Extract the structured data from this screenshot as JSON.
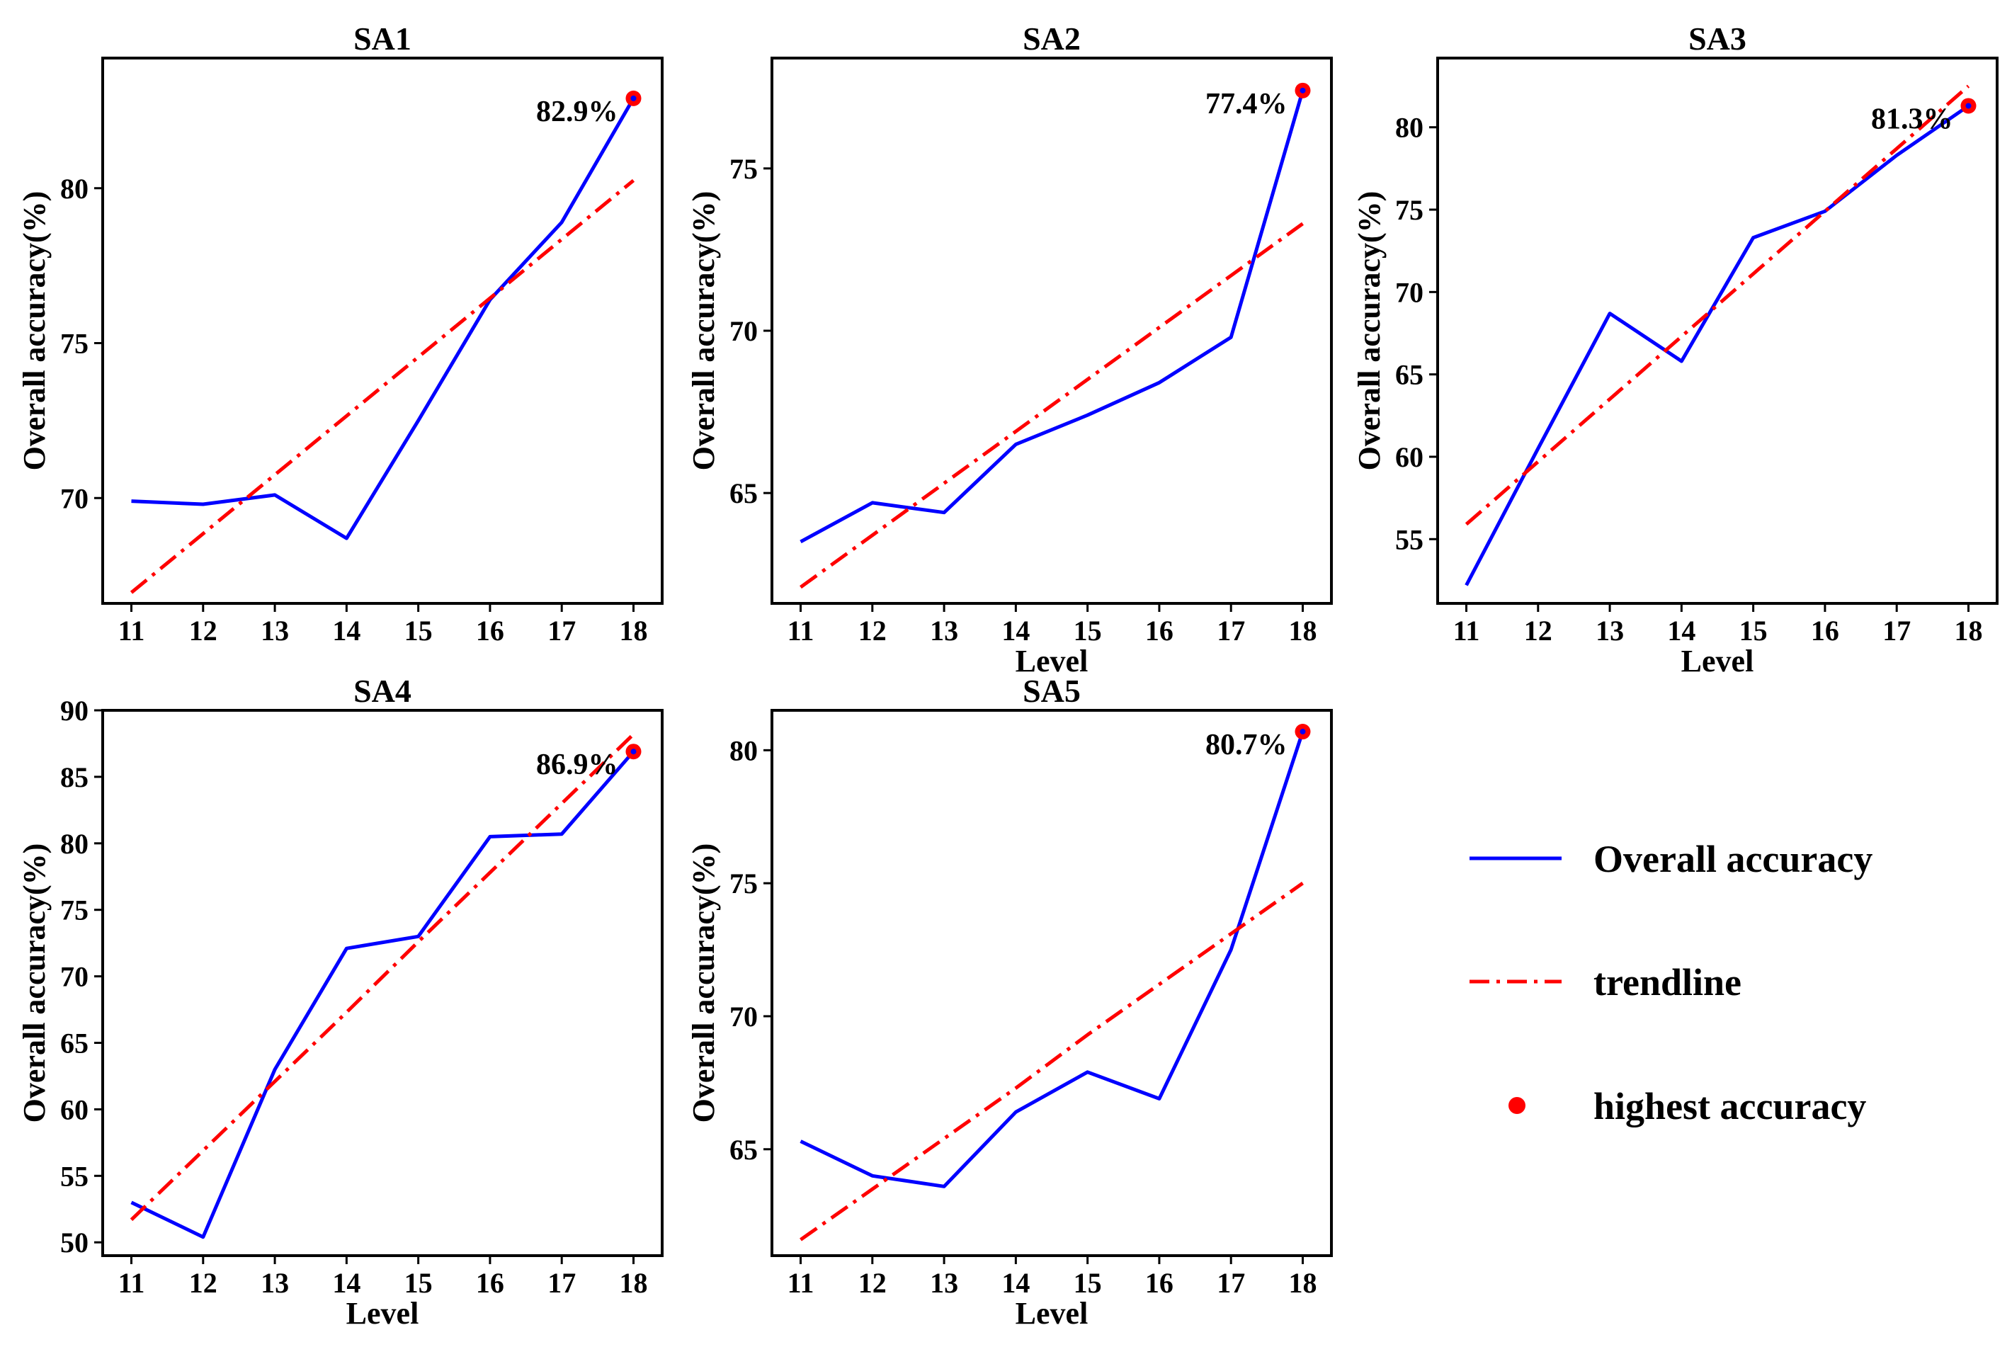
{
  "chart_data": [
    {
      "type": "line",
      "title": "SA1",
      "xlabel": "",
      "ylabel": "Overall accuracy(%)",
      "x": [
        11,
        12,
        13,
        14,
        15,
        16,
        17,
        18
      ],
      "xticks": [
        "11",
        "12",
        "13",
        "14",
        "15",
        "16",
        "17",
        "18"
      ],
      "yticks": [
        70,
        75,
        80
      ],
      "xlim": [
        10.6,
        18.4
      ],
      "ylim": [
        66.6,
        84.2
      ],
      "series": [
        {
          "name": "Overall accuracy",
          "color": "#0000ff",
          "style": "solid",
          "values": [
            69.9,
            69.8,
            70.1,
            68.7,
            72.5,
            76.4,
            78.9,
            82.9
          ]
        },
        {
          "name": "trendline",
          "color": "#ff0000",
          "style": "dashdot",
          "values": [
            66.95,
            68.85,
            70.75,
            72.65,
            74.55,
            76.45,
            78.35,
            80.25
          ]
        }
      ],
      "highlight": {
        "x": 18,
        "y": 82.9,
        "label": "82.9%",
        "color": "#ff0000"
      }
    },
    {
      "type": "line",
      "title": "SA2",
      "xlabel": "Level",
      "ylabel": "Overall accuracy(%)",
      "x": [
        11,
        12,
        13,
        14,
        15,
        16,
        17,
        18
      ],
      "xticks": [
        "11",
        "12",
        "13",
        "14",
        "15",
        "16",
        "17",
        "18"
      ],
      "yticks": [
        65,
        70,
        75
      ],
      "xlim": [
        10.6,
        18.4
      ],
      "ylim": [
        61.6,
        78.4
      ],
      "series": [
        {
          "name": "Overall accuracy",
          "color": "#0000ff",
          "style": "solid",
          "values": [
            63.5,
            64.7,
            64.4,
            66.5,
            67.4,
            68.4,
            69.8,
            77.4
          ]
        },
        {
          "name": "trendline",
          "color": "#ff0000",
          "style": "dashdot",
          "values": [
            62.1,
            63.7,
            65.3,
            66.9,
            68.5,
            70.1,
            71.7,
            73.3
          ]
        }
      ],
      "highlight": {
        "x": 18,
        "y": 77.4,
        "label": "77.4%",
        "color": "#ff0000"
      }
    },
    {
      "type": "line",
      "title": "SA3",
      "xlabel": "Level",
      "ylabel": "Overall accuracy(%)",
      "x": [
        11,
        12,
        13,
        14,
        15,
        16,
        17,
        18
      ],
      "xticks": [
        "11",
        "12",
        "13",
        "14",
        "15",
        "16",
        "17",
        "18"
      ],
      "yticks": [
        55,
        60,
        65,
        70,
        75,
        80
      ],
      "xlim": [
        10.6,
        18.4
      ],
      "ylim": [
        51.1,
        84.2
      ],
      "series": [
        {
          "name": "Overall accuracy",
          "color": "#0000ff",
          "style": "solid",
          "values": [
            52.2,
            60.5,
            68.7,
            65.8,
            73.3,
            74.9,
            78.3,
            81.3
          ]
        },
        {
          "name": "trendline",
          "color": "#ff0000",
          "style": "dashdot",
          "values": [
            55.9,
            59.7,
            63.5,
            67.3,
            71.1,
            74.9,
            78.7,
            82.5
          ]
        }
      ],
      "highlight": {
        "x": 18,
        "y": 81.3,
        "label": "81.3%",
        "color": "#ff0000"
      }
    },
    {
      "type": "line",
      "title": "SA4",
      "xlabel": "Level",
      "ylabel": "Overall accuracy(%)",
      "x": [
        11,
        12,
        13,
        14,
        15,
        16,
        17,
        18
      ],
      "xticks": [
        "11",
        "12",
        "13",
        "14",
        "15",
        "16",
        "17",
        "18"
      ],
      "yticks": [
        50,
        55,
        60,
        65,
        70,
        75,
        80,
        85,
        90
      ],
      "xlim": [
        10.6,
        18.4
      ],
      "ylim": [
        49.0,
        90.0
      ],
      "series": [
        {
          "name": "Overall accuracy",
          "color": "#0000ff",
          "style": "solid",
          "values": [
            53.0,
            50.4,
            63.0,
            72.1,
            73.0,
            80.5,
            80.7,
            86.9
          ]
        },
        {
          "name": "trendline",
          "color": "#ff0000",
          "style": "dashdot",
          "values": [
            51.7,
            56.9,
            62.1,
            67.3,
            72.6,
            77.8,
            83.0,
            88.2
          ]
        }
      ],
      "highlight": {
        "x": 18,
        "y": 86.9,
        "label": "86.9%",
        "color": "#ff0000"
      }
    },
    {
      "type": "line",
      "title": "SA5",
      "xlabel": "Level",
      "ylabel": "Overall accuracy(%)",
      "x": [
        11,
        12,
        13,
        14,
        15,
        16,
        17,
        18
      ],
      "xticks": [
        "11",
        "12",
        "13",
        "14",
        "15",
        "16",
        "17",
        "18"
      ],
      "yticks": [
        65,
        70,
        75,
        80
      ],
      "xlim": [
        10.6,
        18.4
      ],
      "ylim": [
        61.0,
        81.5
      ],
      "series": [
        {
          "name": "Overall accuracy",
          "color": "#0000ff",
          "style": "solid",
          "values": [
            65.3,
            64.0,
            63.6,
            66.4,
            67.9,
            66.9,
            72.5,
            80.7
          ]
        },
        {
          "name": "trendline",
          "color": "#ff0000",
          "style": "dashdot",
          "values": [
            61.6,
            63.5,
            65.4,
            67.3,
            69.3,
            71.2,
            73.1,
            75.0
          ]
        }
      ],
      "highlight": {
        "x": 18,
        "y": 80.7,
        "label": "80.7%",
        "color": "#ff0000"
      }
    }
  ],
  "legend": {
    "placement": "right",
    "items": [
      {
        "label": "Overall accuracy",
        "kind": "line",
        "color": "#0000ff"
      },
      {
        "label": "trendline",
        "kind": "dashdot",
        "color": "#ff0000"
      },
      {
        "label": "highest accuracy",
        "kind": "dot",
        "color": "#ff0000"
      }
    ]
  }
}
